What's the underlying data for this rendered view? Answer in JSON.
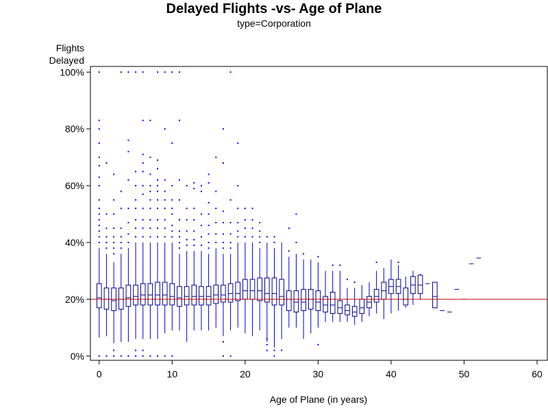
{
  "chart_data": {
    "type": "box",
    "title": "Delayed Flights -vs- Age of Plane",
    "subtitle": "type=Corporation",
    "xlabel": "Age of Plane (in years)",
    "ylabel_lines": [
      "Flights",
      "Delayed"
    ],
    "xlim": [
      -1.2,
      61.5
    ],
    "ylim": [
      -1.5,
      102
    ],
    "x_ticks": [
      0,
      10,
      20,
      30,
      40,
      50,
      60
    ],
    "y_ticks": [
      0,
      20,
      40,
      60,
      80,
      100
    ],
    "y_tick_labels": [
      "0%",
      "20%",
      "40%",
      "60%",
      "80%",
      "100%"
    ],
    "reference_line": 20,
    "colors": {
      "box": "#00008b",
      "whisker": "#0000cd",
      "outlier": "#0000ff",
      "reference": "#cc0000",
      "frame": "#000000"
    },
    "boxes": [
      {
        "x": 0,
        "min": 6.5,
        "q1": 17,
        "median": 20.5,
        "q3": 25.5,
        "max": 38,
        "outliers": [
          0,
          40,
          42,
          44,
          46,
          48,
          50,
          52,
          55,
          60,
          63,
          67,
          70,
          75,
          80,
          83,
          100
        ]
      },
      {
        "x": 1,
        "min": 7,
        "q1": 16.5,
        "median": 20,
        "q3": 24,
        "max": 36,
        "outliers": [
          0,
          38,
          40,
          42,
          45,
          50,
          68
        ]
      },
      {
        "x": 2,
        "min": 4.5,
        "q1": 16,
        "median": 19.5,
        "q3": 24,
        "max": 33,
        "outliers": [
          0,
          2,
          36,
          38,
          40,
          42,
          45,
          50,
          55,
          64
        ]
      },
      {
        "x": 3,
        "min": 5,
        "q1": 16.5,
        "median": 20,
        "q3": 24,
        "max": 36,
        "outliers": [
          0,
          38,
          40,
          42,
          45,
          52,
          58,
          100
        ]
      },
      {
        "x": 4,
        "min": 5,
        "q1": 17.5,
        "median": 20.5,
        "q3": 25,
        "max": 38,
        "outliers": [
          0,
          40,
          43,
          47,
          52,
          62,
          72,
          76,
          100
        ]
      },
      {
        "x": 5,
        "min": 6,
        "q1": 18,
        "median": 21,
        "q3": 25,
        "max": 40,
        "outliers": [
          0,
          2,
          42,
          45,
          48,
          52,
          55,
          60,
          65,
          100
        ]
      },
      {
        "x": 6,
        "min": 6,
        "q1": 18,
        "median": 21.5,
        "q3": 25.5,
        "max": 40,
        "outliers": [
          0,
          2,
          42,
          45,
          48,
          52,
          57,
          60,
          65,
          68,
          71,
          83,
          100
        ]
      },
      {
        "x": 7,
        "min": 6,
        "q1": 18,
        "median": 21.5,
        "q3": 25.5,
        "max": 40,
        "outliers": [
          0,
          42,
          45,
          48,
          52,
          55,
          58,
          60,
          64,
          70,
          83
        ]
      },
      {
        "x": 8,
        "min": 6,
        "q1": 18,
        "median": 21.5,
        "q3": 26,
        "max": 40,
        "outliers": [
          0,
          42,
          45,
          48,
          52,
          55,
          58,
          60,
          62,
          66,
          69,
          100
        ]
      },
      {
        "x": 9,
        "min": 8,
        "q1": 18,
        "median": 21.5,
        "q3": 26,
        "max": 40,
        "outliers": [
          0,
          42,
          45,
          48,
          52,
          55,
          58,
          62,
          80,
          100
        ]
      },
      {
        "x": 10,
        "min": 9,
        "q1": 18,
        "median": 21,
        "q3": 25.5,
        "max": 40,
        "outliers": [
          0,
          42,
          44,
          46,
          50,
          52,
          55,
          60,
          75,
          100
        ]
      },
      {
        "x": 11,
        "min": 9,
        "q1": 17.5,
        "median": 20.5,
        "q3": 24.5,
        "max": 36,
        "outliers": [
          38,
          40,
          42,
          44,
          48,
          55,
          62,
          83,
          100
        ]
      },
      {
        "x": 12,
        "min": 5,
        "q1": 18,
        "median": 21,
        "q3": 24.5,
        "max": 37,
        "outliers": [
          39,
          41,
          44,
          48,
          52,
          60
        ]
      },
      {
        "x": 13,
        "min": 9,
        "q1": 18,
        "median": 21,
        "q3": 25,
        "max": 37,
        "outliers": [
          39,
          41,
          44,
          48,
          52,
          59,
          61
        ]
      },
      {
        "x": 14,
        "min": 9,
        "q1": 18,
        "median": 21,
        "q3": 24.5,
        "max": 37,
        "outliers": [
          39,
          42,
          46,
          50,
          58,
          60
        ]
      },
      {
        "x": 15,
        "min": 9,
        "q1": 18,
        "median": 21,
        "q3": 24.5,
        "max": 36,
        "outliers": [
          38,
          40,
          43,
          46,
          50,
          54,
          61,
          64
        ]
      },
      {
        "x": 16,
        "min": 10,
        "q1": 18.5,
        "median": 21.5,
        "q3": 25,
        "max": 38,
        "outliers": [
          40,
          43,
          47,
          52,
          58,
          70
        ]
      },
      {
        "x": 17,
        "min": 7,
        "q1": 19,
        "median": 21.5,
        "q3": 25,
        "max": 36,
        "outliers": [
          0,
          5,
          38,
          40,
          43,
          47,
          51,
          68,
          80
        ]
      },
      {
        "x": 18,
        "min": 9,
        "q1": 19,
        "median": 22,
        "q3": 25.5,
        "max": 36,
        "outliers": [
          0,
          38,
          40,
          43,
          47,
          55,
          100
        ]
      },
      {
        "x": 19,
        "min": 10,
        "q1": 19.5,
        "median": 22,
        "q3": 26,
        "max": 40,
        "outliers": [
          42,
          44,
          47,
          52,
          60,
          75
        ]
      },
      {
        "x": 20,
        "min": 8,
        "q1": 20,
        "median": 23,
        "q3": 27,
        "max": 40,
        "outliers": [
          42,
          45,
          48,
          52
        ]
      },
      {
        "x": 21,
        "min": 7,
        "q1": 20,
        "median": 23,
        "q3": 27,
        "max": 40,
        "outliers": [
          42,
          45,
          48,
          52
        ]
      },
      {
        "x": 22,
        "min": 9,
        "q1": 19.5,
        "median": 23,
        "q3": 27.5,
        "max": 38,
        "outliers": [
          40,
          42,
          44,
          47
        ]
      },
      {
        "x": 23,
        "min": 5,
        "q1": 19,
        "median": 22,
        "q3": 27.5,
        "max": 40,
        "outliers": [
          2,
          4,
          6,
          42
        ]
      },
      {
        "x": 24,
        "min": 3,
        "q1": 18,
        "median": 22,
        "q3": 27.5,
        "max": 38,
        "outliers": [
          0,
          2,
          40,
          42
        ]
      },
      {
        "x": 25,
        "min": 6,
        "q1": 18,
        "median": 21,
        "q3": 27,
        "max": 40,
        "outliers": [
          2
        ]
      },
      {
        "x": 26,
        "min": 10,
        "q1": 16,
        "median": 20,
        "q3": 23,
        "max": 35,
        "outliers": [
          37,
          45
        ]
      },
      {
        "x": 27,
        "min": 10,
        "q1": 15.5,
        "median": 19,
        "q3": 23,
        "max": 36,
        "outliers": [
          40,
          50
        ]
      },
      {
        "x": 28,
        "min": 6,
        "q1": 16,
        "median": 19,
        "q3": 23.5,
        "max": 34,
        "outliers": [
          36
        ]
      },
      {
        "x": 29,
        "min": 8,
        "q1": 16.5,
        "median": 20,
        "q3": 23.5,
        "max": 34,
        "outliers": []
      },
      {
        "x": 30,
        "min": 10,
        "q1": 16,
        "median": 19,
        "q3": 23,
        "max": 33,
        "outliers": [
          4,
          35
        ]
      },
      {
        "x": 31,
        "min": 12,
        "q1": 15.5,
        "median": 18,
        "q3": 21,
        "max": 30,
        "outliers": []
      },
      {
        "x": 32,
        "min": 12,
        "q1": 15,
        "median": 18,
        "q3": 22.5,
        "max": 30,
        "outliers": [
          32
        ]
      },
      {
        "x": 33,
        "min": 12,
        "q1": 15,
        "median": 17,
        "q3": 19.5,
        "max": 30,
        "outliers": [
          32
        ]
      },
      {
        "x": 34,
        "min": 12,
        "q1": 14.5,
        "median": 16,
        "q3": 18,
        "max": 24,
        "outliers": [
          27
        ]
      },
      {
        "x": 35,
        "min": 11,
        "q1": 14,
        "median": 15.5,
        "q3": 17.5,
        "max": 24,
        "outliers": [
          26
        ]
      },
      {
        "x": 36,
        "min": 12,
        "q1": 15,
        "median": 17,
        "q3": 20,
        "max": 25,
        "outliers": []
      },
      {
        "x": 37,
        "min": 14,
        "q1": 17,
        "median": 19,
        "q3": 21,
        "max": 26,
        "outliers": []
      },
      {
        "x": 38,
        "min": 15,
        "q1": 19,
        "median": 21,
        "q3": 23.5,
        "max": 30,
        "outliers": [
          33
        ]
      },
      {
        "x": 39,
        "min": 13,
        "q1": 20,
        "median": 23,
        "q3": 26,
        "max": 31,
        "outliers": []
      },
      {
        "x": 40,
        "min": 15,
        "q1": 22,
        "median": 24.5,
        "q3": 27,
        "max": 34,
        "outliers": []
      },
      {
        "x": 41,
        "min": 16,
        "q1": 22,
        "median": 24.5,
        "q3": 27,
        "max": 32,
        "outliers": [
          33
        ]
      },
      {
        "x": 42,
        "min": 17,
        "q1": 18,
        "median": 20,
        "q3": 24,
        "max": 28,
        "outliers": []
      },
      {
        "x": 43,
        "min": 18,
        "q1": 22,
        "median": 25,
        "q3": 28,
        "max": 30,
        "outliers": []
      },
      {
        "x": 44,
        "min": 20,
        "q1": 22,
        "median": 25,
        "q3": 28.5,
        "max": 29,
        "outliers": []
      },
      {
        "x": 45,
        "min": 25.5,
        "q1": 25.5,
        "median": 25.5,
        "q3": 25.5,
        "max": 25.5,
        "outliers": []
      },
      {
        "x": 46,
        "min": 17,
        "q1": 17,
        "median": 21,
        "q3": 26,
        "max": 26,
        "outliers": []
      },
      {
        "x": 47,
        "min": 16,
        "q1": 16,
        "median": 16,
        "q3": 16,
        "max": 16,
        "outliers": []
      },
      {
        "x": 48,
        "min": 15.5,
        "q1": 15.5,
        "median": 15.5,
        "q3": 15.5,
        "max": 15.5,
        "outliers": []
      },
      {
        "x": 49,
        "min": 23.5,
        "q1": 23.5,
        "median": 23.5,
        "q3": 23.5,
        "max": 23.5,
        "outliers": []
      },
      {
        "x": 50,
        "min": 20,
        "q1": 20,
        "median": 20,
        "q3": 20,
        "max": 20,
        "outliers": []
      },
      {
        "x": 51,
        "min": 32.5,
        "q1": 32.5,
        "median": 32.5,
        "q3": 32.5,
        "max": 32.5,
        "outliers": []
      },
      {
        "x": 52,
        "min": 34.5,
        "q1": 34.5,
        "median": 34.5,
        "q3": 34.5,
        "max": 34.5,
        "outliers": []
      }
    ]
  }
}
